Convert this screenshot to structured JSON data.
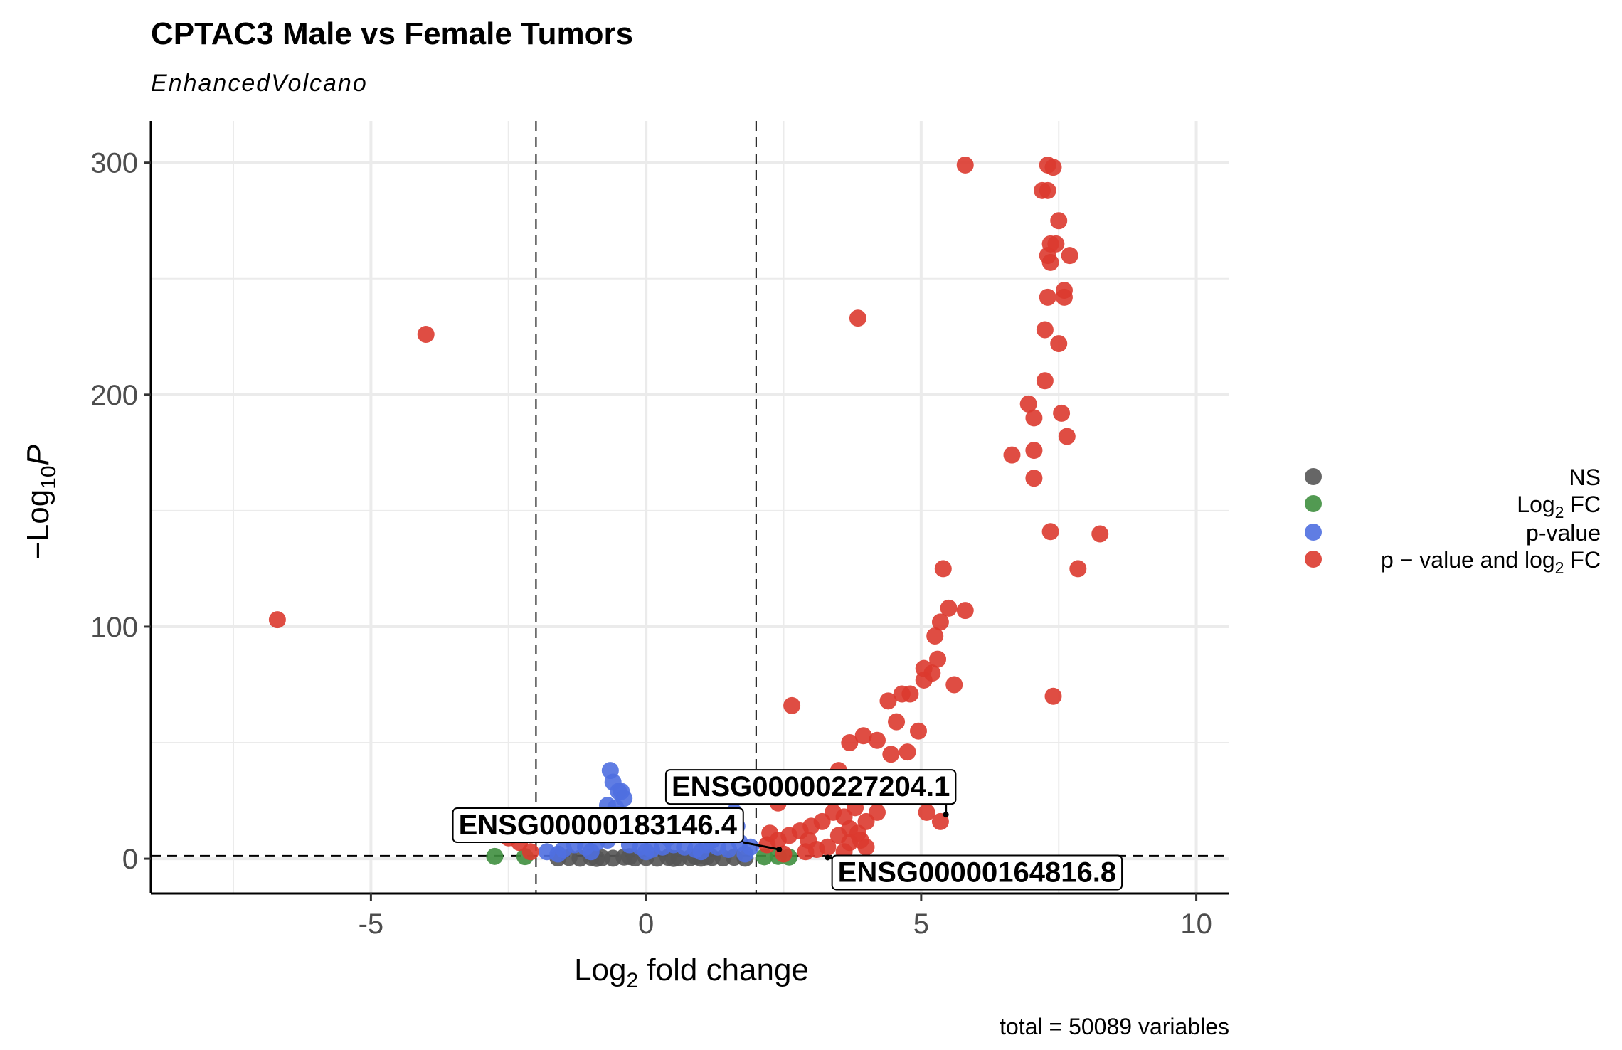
{
  "chart_data": {
    "type": "scatter",
    "title": "CPTAC3 Male vs Female Tumors",
    "subtitle": "EnhancedVolcano",
    "xlabel_base": "Log",
    "xlabel_sub": "2",
    "xlabel_rest": " fold change",
    "ylabel_prefix": "−Log",
    "ylabel_sub": "10",
    "ylabel_var": "P",
    "caption": "total = 50089 variables",
    "xlim": [
      -9,
      10.6
    ],
    "ylim": [
      -15,
      318
    ],
    "x_ticks": [
      -5,
      0,
      5,
      10
    ],
    "x_tick_labels": [
      "-5",
      "0",
      "5",
      "10"
    ],
    "y_ticks": [
      0,
      100,
      200,
      300
    ],
    "y_tick_labels": [
      "0",
      "100",
      "200",
      "300"
    ],
    "fc_cutoff": 2,
    "p_cutoff_log10": 1.3,
    "grid": true,
    "legend_position": "right",
    "legend": [
      {
        "key": "NS",
        "label": "NS",
        "color": "#555555"
      },
      {
        "key": "FC",
        "label_base": "Log",
        "label_sub": "2",
        "label_rest": " FC",
        "color": "#3f8f3f"
      },
      {
        "key": "P",
        "label": "p-value",
        "color": "#4f6fe0"
      },
      {
        "key": "PFC",
        "label_base": "p − value and log",
        "label_sub": "2",
        "label_rest": " FC",
        "color": "#dc3a2f"
      }
    ],
    "series": [
      {
        "key": "NS",
        "color": "#555555",
        "points": [
          [
            -1.6,
            0.3
          ],
          [
            -1.4,
            0.5
          ],
          [
            -1.2,
            0.2
          ],
          [
            -1.0,
            0.6
          ],
          [
            -0.8,
            0.4
          ],
          [
            -0.6,
            0.2
          ],
          [
            -0.4,
            0.7
          ],
          [
            -0.2,
            0.3
          ],
          [
            0.0,
            0.5
          ],
          [
            0.2,
            0.2
          ],
          [
            0.4,
            0.6
          ],
          [
            0.6,
            0.3
          ],
          [
            0.8,
            0.4
          ],
          [
            1.0,
            0.2
          ],
          [
            1.2,
            0.5
          ],
          [
            1.4,
            0.3
          ],
          [
            1.6,
            0.6
          ],
          [
            1.8,
            0.2
          ],
          [
            -0.9,
            0.1
          ],
          [
            0.5,
            0.1
          ],
          [
            1.1,
            0.8
          ],
          [
            -0.3,
            0.9
          ],
          [
            0.9,
            0.9
          ]
        ]
      },
      {
        "key": "FC",
        "color": "#3f8f3f",
        "points": [
          [
            -2.75,
            1.0
          ],
          [
            2.15,
            0.8
          ],
          [
            2.4,
            1.0
          ],
          [
            2.6,
            0.7
          ],
          [
            -2.2,
            0.9
          ]
        ]
      },
      {
        "key": "P",
        "color": "#4f6fe0",
        "points": [
          [
            -0.65,
            38
          ],
          [
            -0.6,
            33
          ],
          [
            -0.5,
            29
          ],
          [
            -0.45,
            29
          ],
          [
            -0.4,
            26
          ],
          [
            -0.7,
            23
          ],
          [
            -0.55,
            22
          ],
          [
            -0.5,
            19
          ],
          [
            1.6,
            20
          ],
          [
            -1.8,
            3
          ],
          [
            -1.5,
            4
          ],
          [
            -1.3,
            6
          ],
          [
            -1.1,
            5
          ],
          [
            -0.9,
            7
          ],
          [
            -0.7,
            8
          ],
          [
            -0.3,
            6
          ],
          [
            -0.1,
            5
          ],
          [
            0.1,
            4
          ],
          [
            0.3,
            5
          ],
          [
            0.5,
            6
          ],
          [
            0.7,
            5
          ],
          [
            0.9,
            4
          ],
          [
            1.1,
            6
          ],
          [
            1.3,
            5
          ],
          [
            1.5,
            4
          ],
          [
            1.7,
            7
          ],
          [
            1.9,
            5
          ],
          [
            -1.2,
            10
          ],
          [
            -0.8,
            12
          ],
          [
            -0.4,
            14
          ],
          [
            0.4,
            9
          ],
          [
            0.8,
            11
          ],
          [
            1.2,
            8
          ],
          [
            1.65,
            14
          ],
          [
            -1.0,
            3
          ],
          [
            0.0,
            3
          ],
          [
            1.0,
            3
          ],
          [
            -1.6,
            2
          ],
          [
            1.8,
            2
          ],
          [
            0.2,
            12
          ]
        ]
      },
      {
        "key": "PFC",
        "color": "#dc3a2f",
        "points": [
          [
            -6.7,
            103
          ],
          [
            -4.0,
            226
          ],
          [
            3.85,
            233
          ],
          [
            5.8,
            299
          ],
          [
            7.3,
            299
          ],
          [
            7.4,
            298
          ],
          [
            7.2,
            288
          ],
          [
            7.3,
            288
          ],
          [
            7.5,
            275
          ],
          [
            7.35,
            265
          ],
          [
            7.45,
            265
          ],
          [
            7.3,
            260
          ],
          [
            7.35,
            257
          ],
          [
            7.7,
            260
          ],
          [
            7.6,
            245
          ],
          [
            7.6,
            242
          ],
          [
            7.3,
            242
          ],
          [
            7.25,
            228
          ],
          [
            7.5,
            222
          ],
          [
            7.25,
            206
          ],
          [
            6.95,
            196
          ],
          [
            7.05,
            190
          ],
          [
            7.55,
            192
          ],
          [
            7.65,
            182
          ],
          [
            6.65,
            174
          ],
          [
            7.05,
            176
          ],
          [
            7.05,
            164
          ],
          [
            7.35,
            141
          ],
          [
            8.25,
            140
          ],
          [
            5.4,
            125
          ],
          [
            7.85,
            125
          ],
          [
            5.5,
            108
          ],
          [
            5.8,
            107
          ],
          [
            5.35,
            102
          ],
          [
            5.25,
            96
          ],
          [
            5.3,
            86
          ],
          [
            5.05,
            82
          ],
          [
            5.2,
            80
          ],
          [
            5.05,
            77
          ],
          [
            5.6,
            75
          ],
          [
            7.4,
            70
          ],
          [
            4.65,
            71
          ],
          [
            4.8,
            71
          ],
          [
            4.4,
            68
          ],
          [
            2.65,
            66
          ],
          [
            4.55,
            59
          ],
          [
            4.95,
            55
          ],
          [
            3.95,
            53
          ],
          [
            4.2,
            51
          ],
          [
            3.7,
            50
          ],
          [
            4.75,
            46
          ],
          [
            4.45,
            45
          ],
          [
            3.5,
            38
          ],
          [
            3.9,
            34
          ],
          [
            3.3,
            33
          ],
          [
            2.9,
            28
          ],
          [
            2.7,
            27
          ],
          [
            2.4,
            24
          ],
          [
            5.1,
            20
          ],
          [
            5.35,
            16
          ],
          [
            3.4,
            20
          ],
          [
            3.6,
            18
          ],
          [
            3.8,
            22
          ],
          [
            4.0,
            16
          ],
          [
            4.2,
            20
          ],
          [
            3.0,
            14
          ],
          [
            3.2,
            16
          ],
          [
            2.8,
            12
          ],
          [
            2.6,
            10
          ],
          [
            2.4,
            8
          ],
          [
            2.2,
            6
          ],
          [
            3.5,
            10
          ],
          [
            3.7,
            7
          ],
          [
            3.9,
            8
          ],
          [
            3.3,
            5
          ],
          [
            3.1,
            4
          ],
          [
            2.9,
            3
          ],
          [
            2.5,
            2
          ],
          [
            3.6,
            3
          ],
          [
            4.0,
            5
          ],
          [
            2.25,
            11
          ],
          [
            -2.2,
            18
          ],
          [
            -2.4,
            14
          ],
          [
            -2.5,
            9
          ],
          [
            -2.3,
            7
          ],
          [
            -2.1,
            3
          ],
          [
            3.7,
            13
          ],
          [
            3.85,
            11
          ],
          [
            2.95,
            8
          ]
        ]
      }
    ],
    "annotations": [
      {
        "label": "ENSG00000227204.1",
        "x": 5.45,
        "y": 19
      },
      {
        "label": "ENSG00000183146.4",
        "x": 2.42,
        "y": 4
      },
      {
        "label": "ENSG00000164816.8",
        "x": 3.3,
        "y": 0.5
      }
    ]
  }
}
